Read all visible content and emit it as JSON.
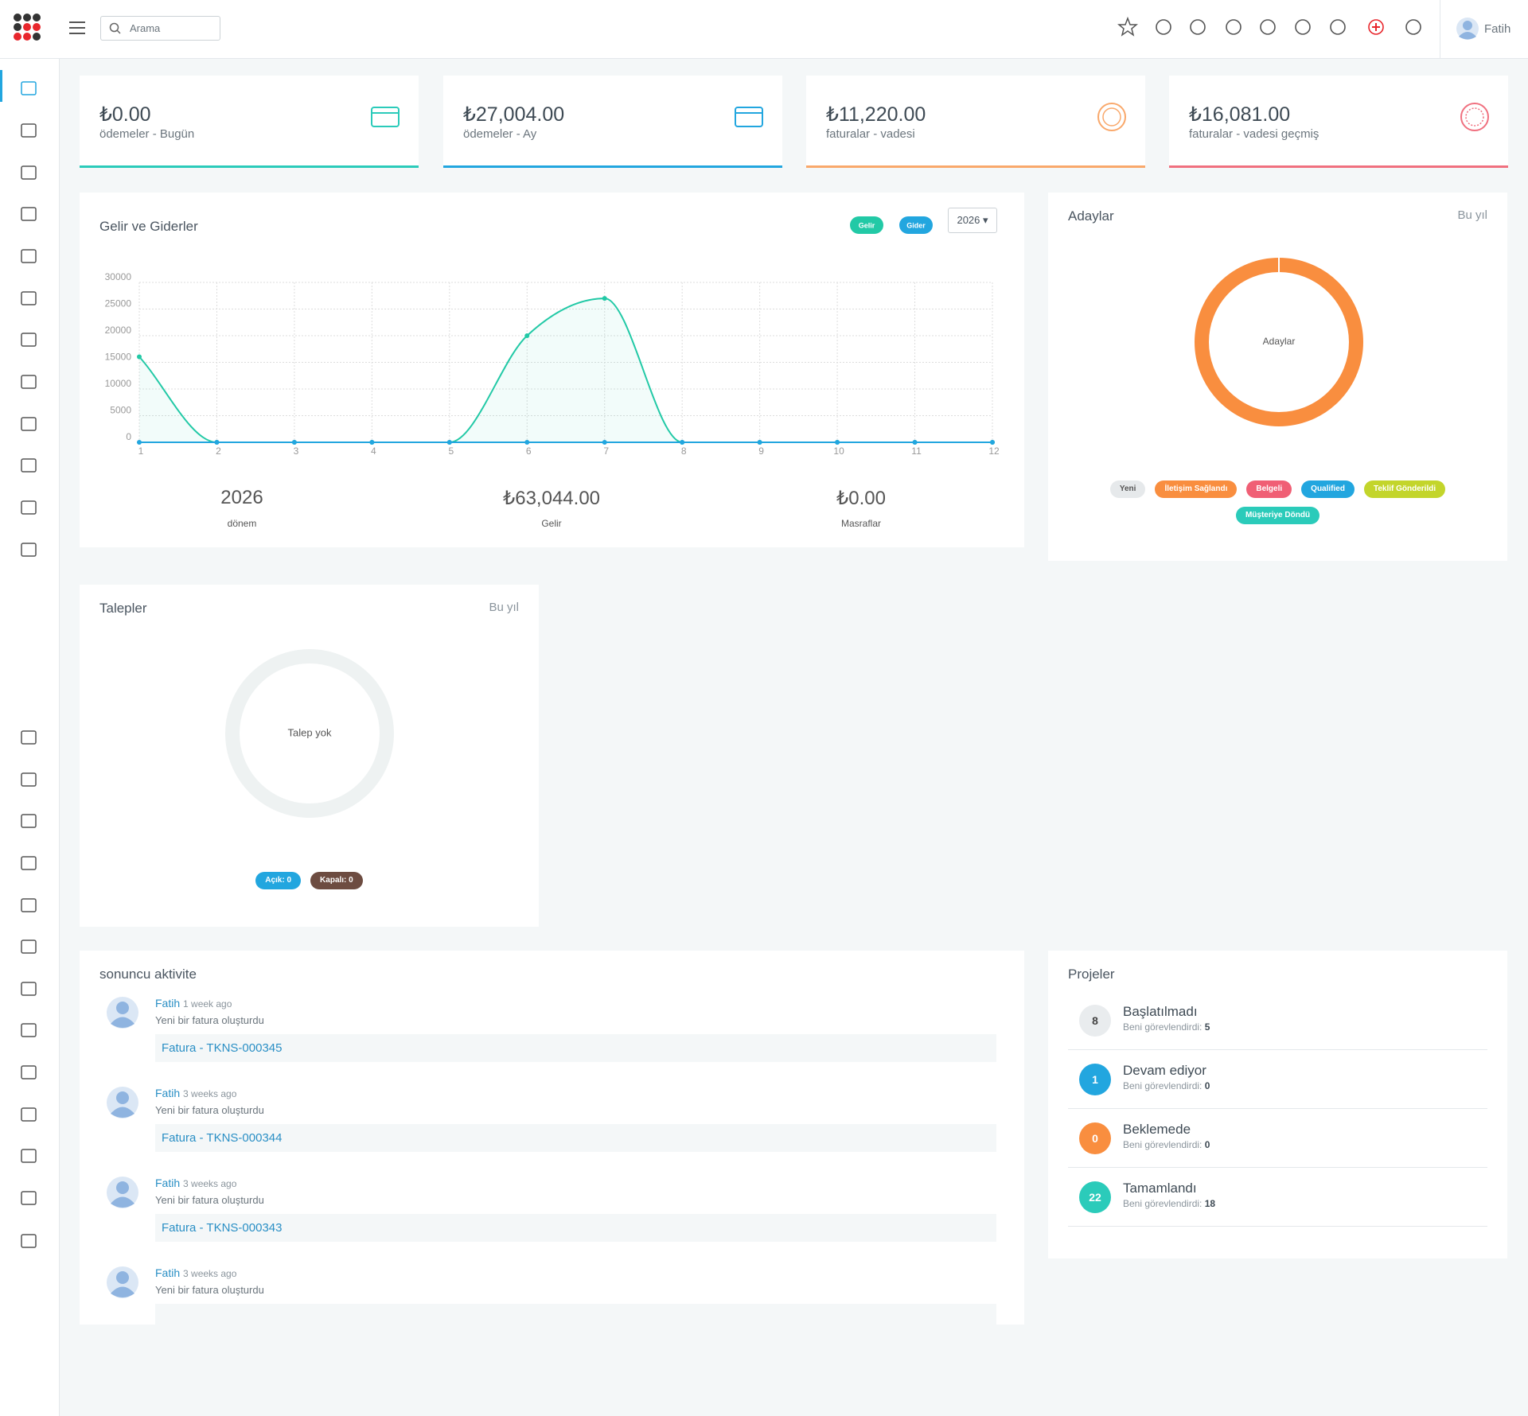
{
  "header": {
    "search_placeholder": "Arama",
    "user": "Fatih"
  },
  "stat_cards": [
    {
      "amount": "₺0.00",
      "label": "ödemeler - Bugün",
      "color": "#2bcbba"
    },
    {
      "amount": "₺27,004.00",
      "label": "ödemeler - Ay",
      "color": "#22a6df"
    },
    {
      "amount": "₺11,220.00",
      "label": "faturalar - vadesi",
      "color": "#f9a86b"
    },
    {
      "amount": "₺16,081.00",
      "label": "faturalar - vadesi geçmiş",
      "color": "#f0707f"
    }
  ],
  "chart_data": {
    "type": "line",
    "title": "Gelir ve Giderler",
    "year": "2026",
    "categories": [
      "1",
      "2",
      "3",
      "4",
      "5",
      "6",
      "7",
      "8",
      "9",
      "10",
      "11",
      "12"
    ],
    "series": [
      {
        "name": "Gelir",
        "color": "#22c9a6",
        "values": [
          16044,
          0,
          0,
          0,
          0,
          20000,
          27000,
          0,
          0,
          0,
          0,
          0
        ]
      },
      {
        "name": "Gider",
        "color": "#22a6df",
        "values": [
          0,
          0,
          0,
          0,
          0,
          0,
          0,
          0,
          0,
          0,
          0,
          0
        ]
      }
    ],
    "ylim": [
      0,
      30000
    ],
    "yticks": [
      0,
      5000,
      10000,
      15000,
      20000,
      25000,
      30000
    ],
    "grid": true,
    "summary": [
      {
        "value": "2026",
        "label": "dönem"
      },
      {
        "value": "₺63,044.00",
        "label": "Gelir"
      },
      {
        "value": "₺0.00",
        "label": "Masraflar"
      }
    ]
  },
  "leads": {
    "title": "Adaylar",
    "period": "Bu yıl",
    "center": "Adaylar",
    "statuses": [
      {
        "name": "Yeni",
        "color": "#e6e9eb"
      },
      {
        "name": "İletişim Sağlandı",
        "color": "#f98e3f"
      },
      {
        "name": "Belgeli",
        "color": "#f05f75"
      },
      {
        "name": "Qualified",
        "color": "#22a6df"
      },
      {
        "name": "Teklif Gönderildi",
        "color": "#c3d52b"
      },
      {
        "name": "Müşteriye Döndü",
        "color": "#2bcbba"
      }
    ]
  },
  "tickets": {
    "title": "Talepler",
    "period": "Bu yıl",
    "center": "Talep yok",
    "statuses": [
      {
        "name": "Açık: 0",
        "color": "#22a6df"
      },
      {
        "name": "Kapalı: 0",
        "color": "#6d4c41"
      }
    ]
  },
  "activity": {
    "title": "sonuncu aktivite",
    "items": [
      {
        "user": "Fatih",
        "time": "1 week ago",
        "text": "Yeni bir fatura oluşturdu",
        "link": "Fatura - TKNS-000345"
      },
      {
        "user": "Fatih",
        "time": "3 weeks ago",
        "text": "Yeni bir fatura oluşturdu",
        "link": "Fatura - TKNS-000344"
      },
      {
        "user": "Fatih",
        "time": "3 weeks ago",
        "text": "Yeni bir fatura oluşturdu",
        "link": "Fatura - TKNS-000343"
      },
      {
        "user": "Fatih",
        "time": "3 weeks ago",
        "text": "Yeni bir fatura oluşturdu"
      }
    ]
  },
  "projects": {
    "title": "Projeler",
    "assigned_label": "Beni görevlendirdi:",
    "items": [
      {
        "count": "8",
        "name": "Başlatılmadı",
        "assigned": "5",
        "color": "#e9ecee"
      },
      {
        "count": "1",
        "name": "Devam ediyor",
        "assigned": "0",
        "color": "#22a6df"
      },
      {
        "count": "0",
        "name": "Beklemede",
        "assigned": "0",
        "color": "#f98e3f"
      },
      {
        "count": "22",
        "name": "Tamamlandı",
        "assigned": "18",
        "color": "#2bcbba"
      }
    ]
  }
}
